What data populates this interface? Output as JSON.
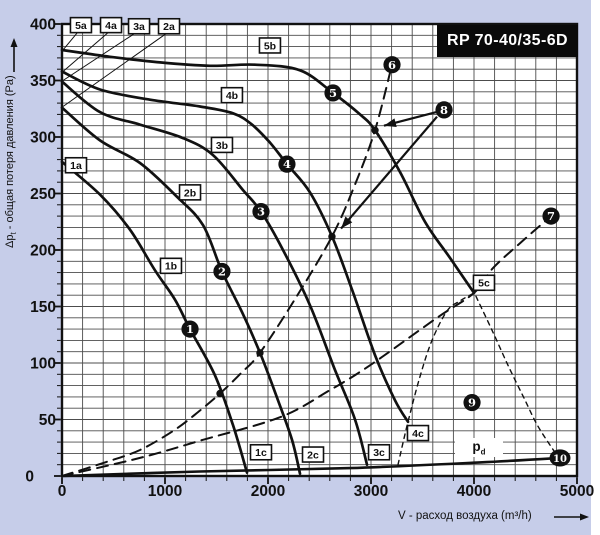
{
  "colors": {
    "background": "#c6cde9",
    "plot_background": "#ffffff",
    "grid": "#4c4c4c",
    "ink": "#111111",
    "title_bg": "#0a0a0a",
    "title_fg": "#ffffff"
  },
  "pd": {
    "prefix": "p",
    "sub": "d"
  },
  "chart_data": {
    "type": "line",
    "title": "RP 70-40/35-6D",
    "xlabel": "V - расход воздуха (m³/h)",
    "ylabel": {
      "prefix": "Δp",
      "sub": "t",
      "suffix": " - общая потеря давления (Pa)"
    },
    "xlim": [
      0,
      5000
    ],
    "ylim": [
      0,
      400
    ],
    "x_major_ticks": [
      0,
      1000,
      2000,
      3000,
      4000,
      5000
    ],
    "y_major_ticks": [
      0,
      50,
      100,
      150,
      200,
      250,
      300,
      350,
      400
    ],
    "x_minor_step": 200,
    "y_minor_step": 10,
    "grid": true,
    "series": [
      {
        "name": "fan-curve-1",
        "style": "solid",
        "points": [
          [
            0,
            278
          ],
          [
            369,
            249
          ],
          [
            660,
            218
          ],
          [
            903,
            182
          ],
          [
            1097,
            156
          ],
          [
            1243,
            130
          ],
          [
            1485,
            89
          ],
          [
            1660,
            45
          ],
          [
            1796,
            3
          ]
        ]
      },
      {
        "name": "fan-curve-2",
        "style": "solid",
        "points": [
          [
            0,
            326
          ],
          [
            369,
            297
          ],
          [
            757,
            277
          ],
          [
            1117,
            247
          ],
          [
            1369,
            222
          ],
          [
            1553,
            181
          ],
          [
            1748,
            145
          ],
          [
            1922,
            109
          ],
          [
            2097,
            67
          ],
          [
            2233,
            32
          ],
          [
            2311,
            2
          ]
        ]
      },
      {
        "name": "fan-curve-3",
        "style": "solid",
        "points": [
          [
            0,
            349
          ],
          [
            369,
            322
          ],
          [
            757,
            311
          ],
          [
            1175,
            299
          ],
          [
            1466,
            284
          ],
          [
            1757,
            253
          ],
          [
            1932,
            234
          ],
          [
            2146,
            200
          ],
          [
            2408,
            151
          ],
          [
            2650,
            94
          ],
          [
            2845,
            50
          ],
          [
            2961,
            10
          ]
        ]
      },
      {
        "name": "fan-curve-4",
        "style": "solid",
        "points": [
          [
            0,
            358
          ],
          [
            369,
            342
          ],
          [
            854,
            333
          ],
          [
            1340,
            327
          ],
          [
            1660,
            321
          ],
          [
            1845,
            311
          ],
          [
            2019,
            295
          ],
          [
            2184,
            276
          ],
          [
            2408,
            251
          ],
          [
            2621,
            212
          ],
          [
            2816,
            165
          ],
          [
            3039,
            107
          ],
          [
            3233,
            67
          ],
          [
            3359,
            48
          ]
        ]
      },
      {
        "name": "fan-curve-5",
        "style": "solid",
        "points": [
          [
            0,
            377
          ],
          [
            466,
            371
          ],
          [
            951,
            366
          ],
          [
            1437,
            363
          ],
          [
            1874,
            364
          ],
          [
            2311,
            359
          ],
          [
            2631,
            339
          ],
          [
            2893,
            320
          ],
          [
            3039,
            306
          ],
          [
            3282,
            269
          ],
          [
            3524,
            225
          ],
          [
            3767,
            193
          ],
          [
            4000,
            162
          ]
        ]
      },
      {
        "name": "system-curve-1",
        "style": "dashed",
        "points": [
          [
            0,
            0
          ],
          [
            417,
            12
          ],
          [
            757,
            23
          ],
          [
            1097,
            41
          ],
          [
            1340,
            58
          ],
          [
            1534,
            73
          ],
          [
            1738,
            91
          ],
          [
            1922,
            109
          ],
          [
            2272,
            158
          ],
          [
            2621,
            212
          ],
          [
            2845,
            258
          ],
          [
            3039,
            306
          ],
          [
            3204,
            364
          ]
        ]
      },
      {
        "name": "system-curve-2",
        "style": "dashed",
        "points": [
          [
            0,
            0
          ],
          [
            757,
            16
          ],
          [
            1369,
            32
          ],
          [
            2117,
            52
          ],
          [
            2602,
            76
          ],
          [
            2990,
            98
          ],
          [
            3641,
            140
          ],
          [
            4000,
            162
          ],
          [
            4184,
            184
          ],
          [
            4447,
            206
          ],
          [
            4748,
            230
          ]
        ]
      },
      {
        "name": "boundary-line-rising",
        "style": "fine",
        "points": [
          [
            3262,
            10
          ],
          [
            3359,
            48
          ],
          [
            3476,
            88
          ],
          [
            3592,
            120
          ],
          [
            3738,
            146
          ],
          [
            3864,
            155
          ],
          [
            3981,
            161
          ]
        ]
      },
      {
        "name": "boundary-line-falling",
        "style": "fine",
        "points": [
          [
            4019,
            159
          ],
          [
            4175,
            129
          ],
          [
            4330,
            98
          ],
          [
            4485,
            69
          ],
          [
            4621,
            44
          ],
          [
            4800,
            19
          ]
        ]
      },
      {
        "name": "dynamic-pressure-line",
        "style": "solid",
        "points": [
          [
            0,
            0
          ],
          [
            1340,
            4
          ],
          [
            2796,
            7
          ],
          [
            4058,
            12
          ],
          [
            4835,
            16
          ]
        ]
      }
    ],
    "operating_point_dots": [
      [
        1534,
        73
      ],
      [
        1922,
        109
      ],
      [
        2621,
        212
      ],
      [
        3039,
        306
      ]
    ],
    "numbered_markers": [
      {
        "label": "1",
        "x": 1243,
        "y": 130
      },
      {
        "label": "2",
        "x": 1553,
        "y": 181
      },
      {
        "label": "3",
        "x": 1932,
        "y": 234
      },
      {
        "label": "4",
        "x": 2184,
        "y": 276
      },
      {
        "label": "5",
        "x": 2631,
        "y": 339
      },
      {
        "label": "6",
        "x": 3204,
        "y": 364
      },
      {
        "label": "7",
        "x": 4748,
        "y": 230
      },
      {
        "label": "8",
        "x": 3709,
        "y": 324
      },
      {
        "label": "9",
        "x": 3981,
        "y": 65
      },
      {
        "label": "10",
        "x": 4835,
        "y": 16
      }
    ],
    "segment_labels": [
      {
        "text": "1a",
        "x": 136,
        "y": 275
      },
      {
        "text": "1b",
        "x": 1058,
        "y": 186
      },
      {
        "text": "1c",
        "x": 1932,
        "y": 21
      },
      {
        "text": "2a",
        "x": 1039,
        "y": 398
      },
      {
        "text": "2b",
        "x": 1243,
        "y": 251
      },
      {
        "text": "2c",
        "x": 2437,
        "y": 19
      },
      {
        "text": "3a",
        "x": 748,
        "y": 398
      },
      {
        "text": "3b",
        "x": 1553,
        "y": 293
      },
      {
        "text": "3c",
        "x": 3078,
        "y": 21
      },
      {
        "text": "4a",
        "x": 476,
        "y": 399
      },
      {
        "text": "4b",
        "x": 1650,
        "y": 337
      },
      {
        "text": "4c",
        "x": 3456,
        "y": 38
      },
      {
        "text": "5a",
        "x": 184,
        "y": 399
      },
      {
        "text": "5b",
        "x": 2019,
        "y": 381
      },
      {
        "text": "5c",
        "x": 4097,
        "y": 171
      }
    ],
    "leader_lines": [
      {
        "from": [
          155,
          393
        ],
        "to": [
          10,
          377
        ]
      },
      {
        "from": [
          456,
          393
        ],
        "to": [
          10,
          358
        ]
      },
      {
        "from": [
          728,
          393
        ],
        "to": [
          10,
          350
        ]
      },
      {
        "from": [
          1019,
          392
        ],
        "to": [
          10,
          327
        ]
      }
    ],
    "arrows": [
      {
        "from": [
          3631,
          322
        ],
        "to": [
          3126,
          310
        ]
      },
      {
        "from": [
          3641,
          318
        ],
        "to": [
          2709,
          219
        ]
      }
    ]
  }
}
